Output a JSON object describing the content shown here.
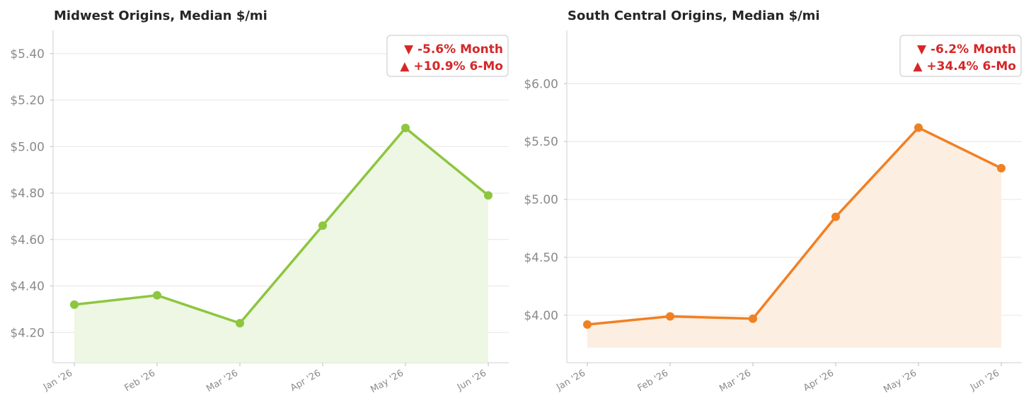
{
  "chart_data": [
    {
      "type": "line",
      "title": "Midwest Origins, Median $/mi",
      "xlabel": "",
      "ylabel": "",
      "categories": [
        "Jan '26",
        "Feb '26",
        "Mar '26",
        "Apr '26",
        "May '26",
        "Jun '26"
      ],
      "series": [
        {
          "values": [
            4.32,
            4.36,
            4.24,
            4.66,
            5.08,
            4.79
          ]
        }
      ],
      "ylim": [
        4.07,
        5.5
      ],
      "yticks": [
        4.2,
        4.4,
        4.6,
        4.8,
        5.0,
        5.2,
        5.4
      ],
      "ytick_labels": [
        "$4.20",
        "$4.40",
        "$4.60",
        "$4.80",
        "$5.00",
        "$5.20",
        "$5.40"
      ],
      "fill_base": 4.07,
      "grid": true,
      "color": "#8dc63f",
      "fill_color": "#eef6e4",
      "annotation": {
        "lines": [
          "▼  -5.6% Month",
          "▲  +10.9% 6-Mo"
        ],
        "placement": "top-right",
        "color": "#d62728"
      }
    },
    {
      "type": "line",
      "title": "South Central Origins, Median $/mi",
      "xlabel": "",
      "ylabel": "",
      "categories": [
        "Jan '26",
        "Feb '26",
        "Mar '26",
        "Apr '26",
        "May '26",
        "Jun '26"
      ],
      "series": [
        {
          "values": [
            3.92,
            3.99,
            3.97,
            4.85,
            5.62,
            5.27
          ]
        }
      ],
      "ylim": [
        3.59,
        6.46
      ],
      "yticks": [
        4.0,
        4.5,
        5.0,
        5.5,
        6.0
      ],
      "ytick_labels": [
        "$4.00",
        "$4.50",
        "$5.00",
        "$5.50",
        "$6.00"
      ],
      "fill_base": 3.72,
      "grid": true,
      "color": "#f08024",
      "fill_color": "#fdeee2",
      "annotation": {
        "lines": [
          "▼  -6.2% Month",
          "▲  +34.4% 6-Mo"
        ],
        "placement": "top-right",
        "color": "#d62728"
      }
    }
  ]
}
